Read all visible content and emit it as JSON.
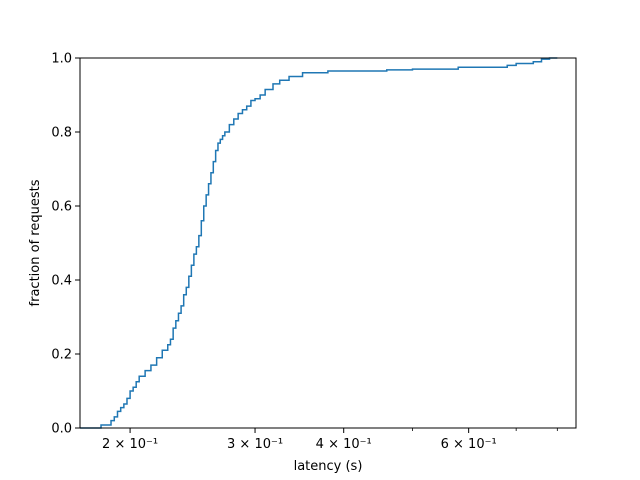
{
  "chart_data": {
    "type": "line",
    "title": "",
    "xlabel": "latency (s)",
    "ylabel": "fraction of requests",
    "xscale": "log",
    "xlim": [
      0.17,
      0.85
    ],
    "ylim": [
      0.0,
      1.0
    ],
    "grid": false,
    "legend": "none",
    "line_color": "#1f77b4",
    "x_ticks": [
      {
        "value": 0.2,
        "label": "2 × 10⁻¹"
      },
      {
        "value": 0.3,
        "label": "3 × 10⁻¹"
      },
      {
        "value": 0.4,
        "label": "4 × 10⁻¹"
      },
      {
        "value": 0.6,
        "label": "6 × 10⁻¹"
      }
    ],
    "x_minor_ticks": [
      0.5,
      0.7,
      0.8
    ],
    "y_ticks": [
      {
        "value": 0.0,
        "label": "0.0"
      },
      {
        "value": 0.2,
        "label": "0.2"
      },
      {
        "value": 0.4,
        "label": "0.4"
      },
      {
        "value": 0.6,
        "label": "0.6"
      },
      {
        "value": 0.8,
        "label": "0.8"
      },
      {
        "value": 1.0,
        "label": "1.0"
      }
    ],
    "series": [
      {
        "step": "post",
        "x": [
          0.17,
          0.182,
          0.188,
          0.19,
          0.192,
          0.194,
          0.196,
          0.198,
          0.2,
          0.202,
          0.204,
          0.206,
          0.21,
          0.214,
          0.218,
          0.222,
          0.226,
          0.228,
          0.23,
          0.232,
          0.234,
          0.236,
          0.238,
          0.24,
          0.242,
          0.244,
          0.246,
          0.248,
          0.25,
          0.252,
          0.254,
          0.256,
          0.258,
          0.26,
          0.262,
          0.264,
          0.266,
          0.268,
          0.27,
          0.272,
          0.276,
          0.28,
          0.284,
          0.288,
          0.292,
          0.296,
          0.3,
          0.305,
          0.31,
          0.318,
          0.325,
          0.335,
          0.35,
          0.38,
          0.46,
          0.5,
          0.58,
          0.68,
          0.7,
          0.74,
          0.76,
          0.78
        ],
        "y": [
          0.0,
          0.008,
          0.02,
          0.03,
          0.045,
          0.055,
          0.065,
          0.08,
          0.1,
          0.11,
          0.125,
          0.14,
          0.155,
          0.17,
          0.19,
          0.21,
          0.225,
          0.24,
          0.27,
          0.29,
          0.31,
          0.33,
          0.36,
          0.38,
          0.41,
          0.44,
          0.47,
          0.49,
          0.52,
          0.56,
          0.6,
          0.63,
          0.66,
          0.69,
          0.72,
          0.75,
          0.77,
          0.78,
          0.79,
          0.8,
          0.82,
          0.835,
          0.85,
          0.86,
          0.87,
          0.885,
          0.89,
          0.9,
          0.915,
          0.93,
          0.94,
          0.95,
          0.96,
          0.965,
          0.968,
          0.97,
          0.975,
          0.98,
          0.985,
          0.99,
          0.997,
          1.0
        ],
        "x_end": 0.8
      }
    ]
  }
}
